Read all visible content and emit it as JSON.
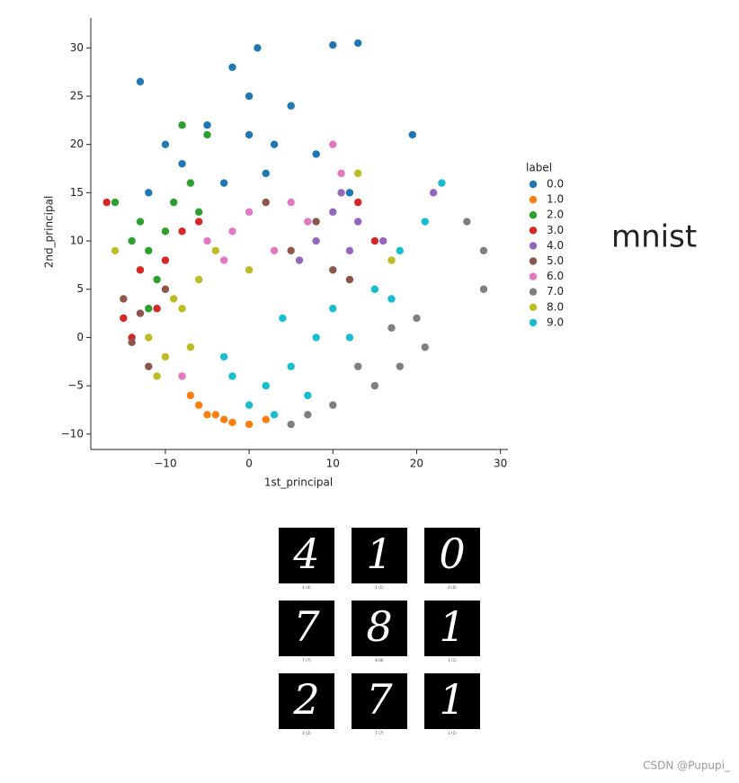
{
  "chart_data": {
    "type": "scatter",
    "xlabel": "1st_principal",
    "ylabel": "2nd_principal",
    "legend_title": "label",
    "legend": "right",
    "xlim": [
      -18.9,
      30.9
    ],
    "ylim": [
      -11.6,
      33.1
    ],
    "xticks": [
      {
        "value": -10,
        "label": "−10"
      },
      0,
      10,
      20,
      30
    ],
    "yticks": [
      {
        "value": -10,
        "label": "−10"
      },
      {
        "value": -5,
        "label": "−5"
      },
      0,
      5,
      10,
      15,
      20,
      25,
      30
    ],
    "series": [
      {
        "name": "0.0",
        "color": "#1f77b4",
        "x": [
          -13,
          -2,
          1,
          13,
          10,
          19.5,
          -5,
          0,
          3,
          -8,
          5,
          -10,
          2,
          -3,
          8,
          12,
          -12,
          0
        ],
        "values": [
          26.5,
          28,
          30,
          30.5,
          30.3,
          21,
          22,
          21,
          20,
          18,
          24,
          20,
          17,
          16,
          19,
          15,
          15,
          25
        ]
      },
      {
        "name": "1.0",
        "color": "#ff7f0e",
        "x": [
          -7,
          -5,
          -3,
          -2,
          0,
          -6,
          -4,
          2,
          -8
        ],
        "values": [
          -6,
          -8,
          -8.5,
          -8.8,
          -9,
          -7,
          -8,
          -8.5,
          -4
        ]
      },
      {
        "name": "2.0",
        "color": "#2ca02c",
        "x": [
          -16,
          -13,
          -12,
          -10,
          -8,
          -5,
          -11,
          -12,
          -14,
          -9,
          -7,
          -6
        ],
        "values": [
          14,
          12,
          9,
          11,
          22,
          21,
          6,
          3,
          10,
          14,
          16,
          13
        ]
      },
      {
        "name": "3.0",
        "color": "#d62728",
        "x": [
          -17,
          -13,
          -15,
          -14,
          -10,
          -8,
          -11,
          13,
          15,
          -6
        ],
        "values": [
          14,
          7,
          2,
          0,
          8,
          11,
          3,
          14,
          10,
          12
        ]
      },
      {
        "name": "4.0",
        "color": "#9467bd",
        "x": [
          22,
          12,
          13,
          10,
          8,
          16,
          11,
          6
        ],
        "values": [
          15,
          9,
          12,
          13,
          10,
          10,
          15,
          8
        ]
      },
      {
        "name": "5.0",
        "color": "#8c564b",
        "x": [
          -14,
          -13,
          -12,
          -15,
          5,
          8,
          2,
          10,
          12,
          -10
        ],
        "values": [
          -0.5,
          2.5,
          -3,
          4,
          9,
          12,
          14,
          7,
          6,
          5
        ]
      },
      {
        "name": "6.0",
        "color": "#e377c2",
        "x": [
          -5,
          0,
          5,
          10,
          -2,
          3,
          7,
          11,
          -8,
          -3
        ],
        "values": [
          10,
          13,
          14,
          20,
          11,
          9,
          12,
          17,
          -4,
          8
        ]
      },
      {
        "name": "7.0",
        "color": "#7f7f7f",
        "x": [
          28,
          26,
          28,
          21,
          18,
          15,
          10,
          7,
          13,
          17,
          20,
          5
        ],
        "values": [
          9,
          12,
          5,
          -1,
          -3,
          -5,
          -7,
          -8,
          -3,
          1,
          2,
          -9
        ]
      },
      {
        "name": "8.0",
        "color": "#bcbd22",
        "x": [
          -16,
          -12,
          -10,
          -8,
          -6,
          -4,
          -9,
          -7,
          13,
          17,
          -11,
          0
        ],
        "values": [
          9,
          0,
          -2,
          3,
          6,
          9,
          4,
          -1,
          17,
          8,
          -4,
          7
        ]
      },
      {
        "name": "9.0",
        "color": "#17becf",
        "x": [
          0,
          2,
          5,
          8,
          10,
          -2,
          3,
          15,
          18,
          23,
          21,
          17,
          7,
          12,
          4,
          -3
        ],
        "values": [
          -7,
          -5,
          -3,
          0,
          3,
          -4,
          -8,
          5,
          9,
          16,
          12,
          4,
          -6,
          0,
          2,
          -2
        ]
      }
    ]
  },
  "side_label": "mnist",
  "samples": [
    {
      "digit": "4",
      "caption": "4 (4)"
    },
    {
      "digit": "1",
      "caption": "1 (1)"
    },
    {
      "digit": "0",
      "caption": "0 (0)"
    },
    {
      "digit": "7",
      "caption": "7 (7)"
    },
    {
      "digit": "8",
      "caption": "8 (8)"
    },
    {
      "digit": "1",
      "caption": "1 (1)"
    },
    {
      "digit": "2",
      "caption": "2 (2)"
    },
    {
      "digit": "7",
      "caption": "7 (7)"
    },
    {
      "digit": "1",
      "caption": "1 (1)"
    }
  ],
  "watermark": "CSDN @Pupupi_"
}
